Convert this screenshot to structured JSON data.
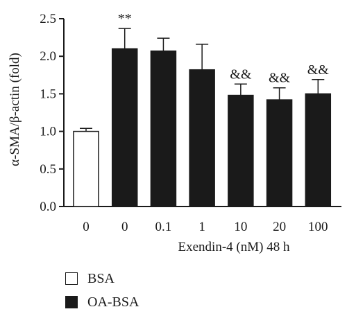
{
  "chart_data": {
    "type": "bar",
    "categories": [
      "0",
      "0",
      "0.1",
      "1",
      "10",
      "20",
      "100"
    ],
    "series": [
      {
        "name": "BSA",
        "values": [
          1.0,
          null,
          null,
          null,
          null,
          null,
          null
        ],
        "errors": [
          0.04,
          null,
          null,
          null,
          null,
          null,
          null
        ],
        "color": "#ffffff"
      },
      {
        "name": "OA-BSA",
        "values": [
          null,
          2.1,
          2.07,
          1.82,
          1.48,
          1.42,
          1.5
        ],
        "errors": [
          null,
          0.27,
          0.17,
          0.34,
          0.15,
          0.16,
          0.19
        ],
        "color": "#1a1a1a"
      }
    ],
    "annotations": [
      "",
      "**",
      "",
      "",
      "&&",
      "&&",
      "&&"
    ],
    "ylabel": "α-SMA/β-actin (fold)",
    "xlabel": "Exendin-4 (nM) 48 h",
    "ylim": [
      0,
      2.5
    ],
    "yticks": [
      "0.0",
      "0.5",
      "1.0",
      "1.5",
      "2.0",
      "2.5"
    ],
    "grid": false,
    "legend_position": "bottom-left"
  },
  "legend": {
    "items": [
      {
        "label": "BSA",
        "color": "#ffffff"
      },
      {
        "label": "OA-BSA",
        "color": "#1a1a1a"
      }
    ]
  }
}
